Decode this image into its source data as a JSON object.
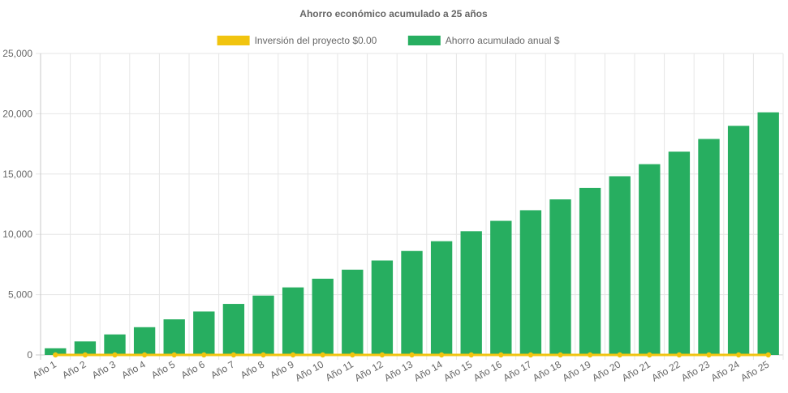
{
  "chart_data": {
    "type": "bar",
    "title": "Ahorro económico acumulado a 25 años",
    "categories": [
      "Año 1",
      "Año 2",
      "Año 3",
      "Año 4",
      "Año 5",
      "Año 6",
      "Año 7",
      "Año 8",
      "Año 9",
      "Año 10",
      "Año 11",
      "Año 12",
      "Año 13",
      "Año 14",
      "Año 15",
      "Año 16",
      "Año 17",
      "Año 18",
      "Año 19",
      "Año 20",
      "Año 21",
      "Año 22",
      "Año 23",
      "Año 24",
      "Año 25"
    ],
    "series": [
      {
        "name": "Inversión del proyecto $0.00",
        "type": "line",
        "color": "#f1c40f",
        "values": [
          0,
          0,
          0,
          0,
          0,
          0,
          0,
          0,
          0,
          0,
          0,
          0,
          0,
          0,
          0,
          0,
          0,
          0,
          0,
          0,
          0,
          0,
          0,
          0,
          0
        ]
      },
      {
        "name": "Ahorro acumulado anual $",
        "type": "bar",
        "color": "#27ae60",
        "values": [
          550,
          1120,
          1700,
          2300,
          2950,
          3600,
          4230,
          4920,
          5600,
          6320,
          7070,
          7830,
          8620,
          9430,
          10260,
          11120,
          12000,
          12900,
          13850,
          14820,
          15820,
          16860,
          17910,
          19000,
          20120
        ]
      }
    ],
    "ylim": [
      0,
      25000
    ],
    "yticks": [
      "0",
      "5,000",
      "10,000",
      "15,000",
      "20,000",
      "25,000"
    ],
    "yticks_values": [
      0,
      5000,
      10000,
      15000,
      20000,
      25000
    ],
    "grid": true,
    "legend_position": "top"
  }
}
